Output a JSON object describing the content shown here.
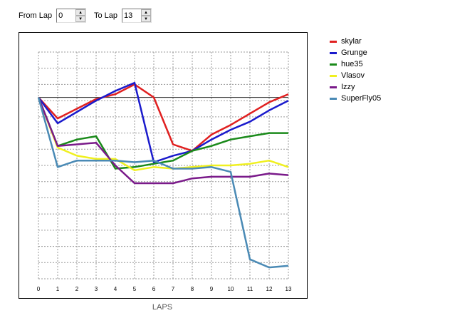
{
  "controls": {
    "from_label": "From Lap",
    "from_value": "0",
    "to_label": "To Lap",
    "to_value": "13"
  },
  "chart_data": {
    "type": "line",
    "xlabel": "LAPS",
    "ylabel": "",
    "x": [
      0,
      1,
      2,
      3,
      4,
      5,
      6,
      7,
      8,
      9,
      10,
      11,
      12,
      13
    ],
    "xlim": [
      0,
      13
    ],
    "ylim": [
      0,
      14
    ],
    "reference_line": 11.2,
    "grid": true,
    "legend_position": "right",
    "series": [
      {
        "name": "skylar",
        "color": "#e02020",
        "values": [
          11.2,
          9.9,
          10.5,
          11.1,
          11.4,
          12.0,
          11.2,
          8.3,
          7.9,
          8.9,
          9.5,
          10.2,
          10.9,
          11.4
        ]
      },
      {
        "name": "Grunge",
        "color": "#1a1acc",
        "values": [
          11.2,
          9.6,
          10.3,
          11.0,
          11.6,
          12.1,
          7.2,
          7.6,
          7.9,
          8.6,
          9.2,
          9.7,
          10.4,
          11.0
        ]
      },
      {
        "name": "hue35",
        "color": "#1a8a1a",
        "values": [
          11.2,
          8.2,
          8.6,
          8.8,
          6.8,
          6.9,
          7.1,
          7.3,
          7.9,
          8.2,
          8.6,
          8.8,
          9.0,
          9.0
        ]
      },
      {
        "name": "Vlasov",
        "color": "#f0f020",
        "values": [
          11.2,
          8.1,
          7.6,
          7.4,
          7.4,
          6.7,
          6.9,
          6.8,
          6.9,
          7.0,
          7.0,
          7.1,
          7.3,
          6.9
        ]
      },
      {
        "name": "Izzy",
        "color": "#7a1a8a",
        "values": [
          11.2,
          8.2,
          8.3,
          8.4,
          7.0,
          5.9,
          5.9,
          5.9,
          6.2,
          6.3,
          6.3,
          6.3,
          6.5,
          6.4
        ]
      },
      {
        "name": "SuperFly05",
        "color": "#4a8ab5",
        "values": [
          11.2,
          6.9,
          7.3,
          7.3,
          7.3,
          7.2,
          7.3,
          6.8,
          6.8,
          6.9,
          6.6,
          1.2,
          0.7,
          0.8
        ]
      }
    ]
  }
}
